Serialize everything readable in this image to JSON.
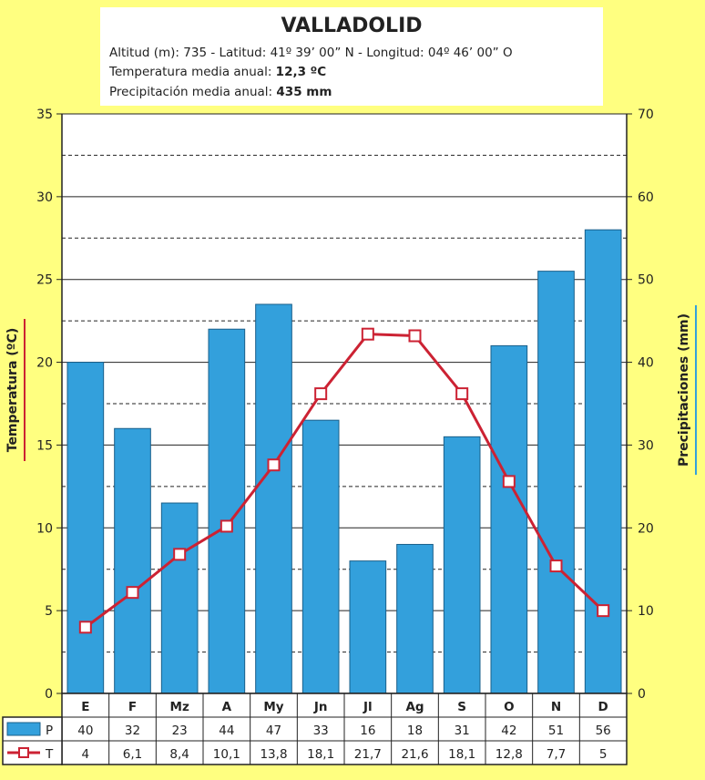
{
  "header": {
    "title": "VALLADOLID",
    "line1_pre": "Altitud (m): 735 - Latitud: ",
    "line1_lat": "41º 39’ 00” N",
    "line1_mid": " - Longitud: ",
    "line1_lon": "04º 46’ 00” O",
    "line2_label": "Temperatura media anual:",
    "line2_value": "12,3 ºC",
    "line3_label": "Precipitación media anual:",
    "line3_value": "435 mm"
  },
  "chart_data": {
    "type": "bar",
    "categories": [
      "E",
      "F",
      "Mz",
      "A",
      "My",
      "Jn",
      "Jl",
      "Ag",
      "S",
      "O",
      "N",
      "D"
    ],
    "series": [
      {
        "name": "P",
        "kind": "bar",
        "axis": "right",
        "values": [
          40,
          32,
          23,
          44,
          47,
          33,
          16,
          18,
          31,
          42,
          51,
          56
        ],
        "labels": [
          "40",
          "32",
          "23",
          "44",
          "47",
          "33",
          "16",
          "18",
          "31",
          "42",
          "51",
          "56"
        ]
      },
      {
        "name": "T",
        "kind": "line",
        "axis": "left",
        "values": [
          4,
          6.1,
          8.4,
          10.1,
          13.8,
          18.1,
          21.7,
          21.6,
          18.1,
          12.8,
          7.7,
          5
        ],
        "labels": [
          "4",
          "6,1",
          "8,4",
          "10,1",
          "13,8",
          "18,1",
          "21,7",
          "21,6",
          "18,1",
          "12,8",
          "7,7",
          "5"
        ]
      }
    ],
    "ylabel_left": "Temperatura (ºC)",
    "ylabel_right": "Precipitaciones (mm)",
    "ylim_left": [
      0,
      35
    ],
    "ylim_right": [
      0,
      70
    ],
    "yticks_left": [
      "0",
      "5",
      "10",
      "15",
      "20",
      "25",
      "30",
      "35"
    ],
    "yticks_right": [
      "0",
      "10",
      "20",
      "30",
      "40",
      "50",
      "60",
      "70"
    ],
    "grid": true,
    "colors": {
      "bar_fill": "#33a0dc",
      "bar_stroke": "#1a5f8a",
      "line": "#cc2233",
      "marker_fill": "#ffffff",
      "grid": "#222222",
      "axis_label_left_underline": "#cc2233",
      "axis_label_right_underline": "#33a0dc"
    }
  }
}
